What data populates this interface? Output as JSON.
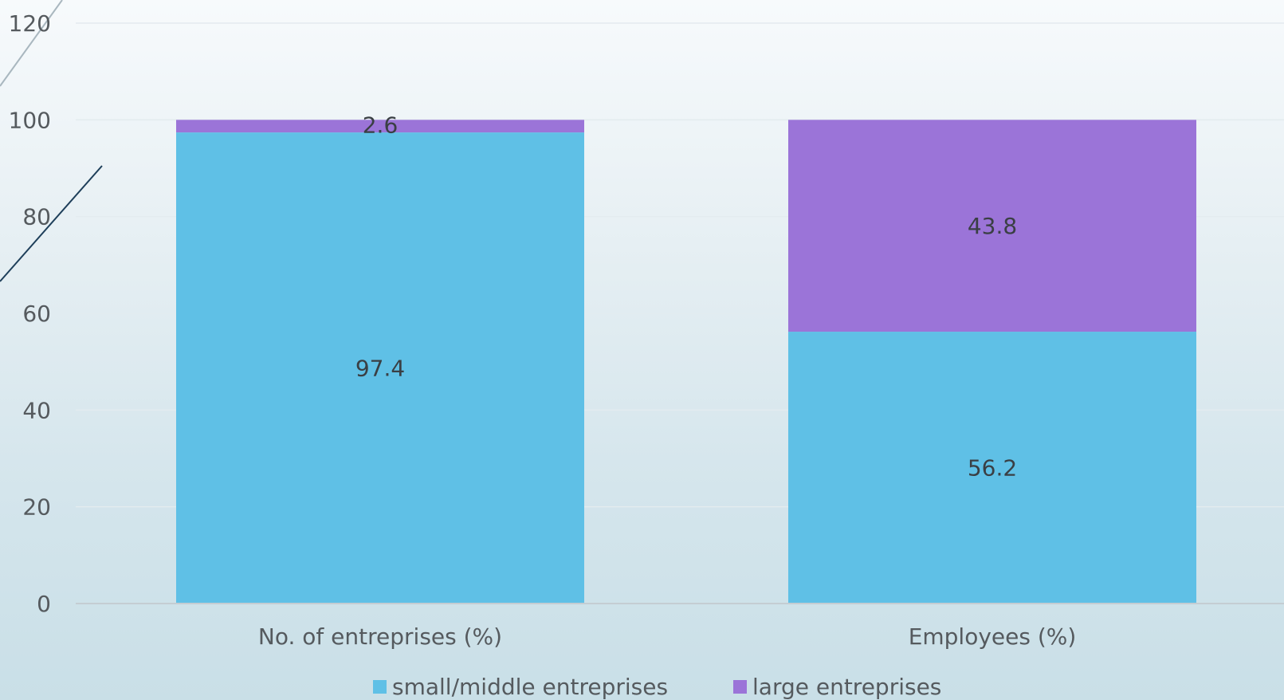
{
  "chart_data": {
    "type": "bar",
    "stacked": true,
    "categories": [
      "No. of entreprises (%)",
      "Employees (%)"
    ],
    "series": [
      {
        "name": "small/middle entreprises",
        "values": [
          97.4,
          56.2
        ],
        "color": "#5fc0e6"
      },
      {
        "name": "large entreprises",
        "values": [
          2.6,
          43.8
        ],
        "color": "#9b74d8"
      }
    ],
    "data_labels": [
      [
        "97.4",
        "56.2"
      ],
      [
        "2.6",
        "43.8"
      ]
    ],
    "title": "",
    "xlabel": "",
    "ylabel": "",
    "ylim": [
      0,
      120
    ],
    "yticks": [
      "0",
      "20",
      "40",
      "60",
      "80",
      "100",
      "120"
    ],
    "grid": true,
    "legend": "bottom"
  },
  "colors": {
    "gridline": "#e3ebef",
    "axis": "#c4cdd2",
    "decor_line": "#1e3f5a"
  }
}
